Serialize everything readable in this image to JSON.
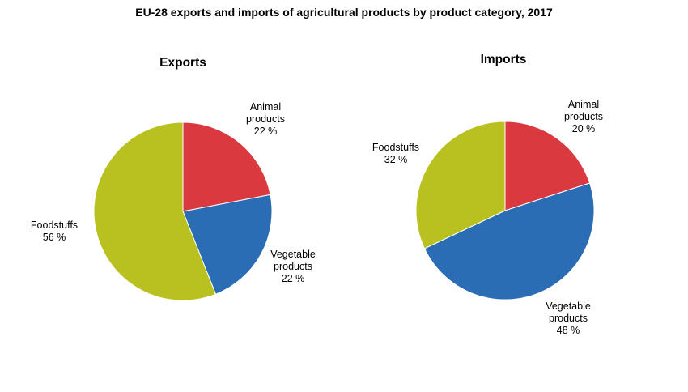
{
  "title": "EU-28 exports and imports of  agricultural products by product category, 2017",
  "chart_data": [
    {
      "type": "pie",
      "title": "Exports",
      "unit": "%",
      "slices": [
        {
          "name": "Animal products",
          "label_lines": [
            "Animal",
            "products"
          ],
          "value": 22,
          "value_label": "22 %",
          "color": "#d9393f"
        },
        {
          "name": "Vegetable products",
          "label_lines": [
            "Vegetable",
            "products"
          ],
          "value": 22,
          "value_label": "22 %",
          "color": "#2a6db5"
        },
        {
          "name": "Foodstuffs",
          "label_lines": [
            "Foodstuffs"
          ],
          "value": 56,
          "value_label": "56 %",
          "color": "#b9c121"
        }
      ]
    },
    {
      "type": "pie",
      "title": "Imports",
      "unit": "%",
      "slices": [
        {
          "name": "Animal products",
          "label_lines": [
            "Animal",
            "products"
          ],
          "value": 20,
          "value_label": "20 %",
          "color": "#d9393f"
        },
        {
          "name": "Vegetable products",
          "label_lines": [
            "Vegetable",
            "products"
          ],
          "value": 48,
          "value_label": "48 %",
          "color": "#2a6db5"
        },
        {
          "name": "Foodstuffs",
          "label_lines": [
            "Foodstuffs"
          ],
          "value": 32,
          "value_label": "32 %",
          "color": "#b9c121"
        }
      ]
    }
  ]
}
